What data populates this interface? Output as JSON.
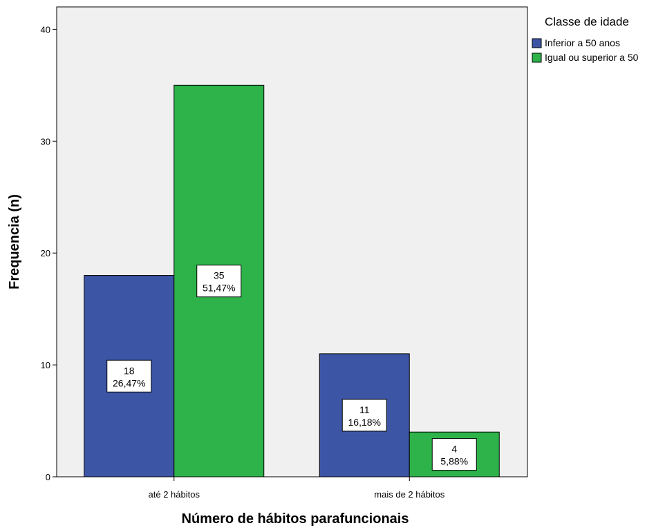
{
  "chart_data": {
    "type": "bar",
    "categories": [
      "até 2 hábitos",
      "mais de 2 hábitos"
    ],
    "series": [
      {
        "name": "Inferior a 50 anos",
        "values": [
          18,
          11
        ],
        "labels": [
          "26,47%",
          "16,18%"
        ],
        "color": "#3c55a5"
      },
      {
        "name": "Igual ou superior a 50",
        "values": [
          35,
          4
        ],
        "labels": [
          "51,47%",
          "5,88%"
        ],
        "color": "#2db34a"
      }
    ],
    "xlabel": "Número de hábitos parafuncionais",
    "ylabel": "Frequencia (n)",
    "ylim": [
      0,
      42
    ],
    "yticks": [
      0,
      10,
      20,
      30,
      40
    ],
    "legend": {
      "title": "Classe de idade",
      "position": "right"
    },
    "plot_background": "#f0f0f0",
    "grid": false
  }
}
